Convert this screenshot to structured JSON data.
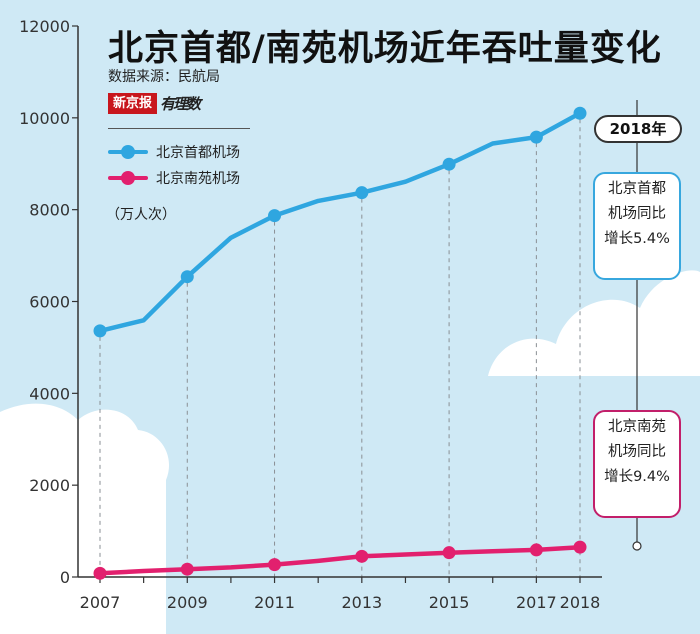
{
  "title": "北京首都/南苑机场近年吞吐量变化",
  "source": "数据来源：民航局",
  "logo": {
    "red_text": "新京报",
    "script_text": "有理数"
  },
  "unit": "（万人次）",
  "annotation": {
    "year": "2018年",
    "capital_lines": [
      "北京首都",
      "机场同比",
      "增长5.4%"
    ],
    "nanyuan_lines": [
      "北京南苑",
      "机场同比",
      "增长9.4%"
    ]
  },
  "colors": {
    "capital": "#2fa6e0",
    "nanyuan": "#e2206e",
    "background": "#cfe9f5"
  },
  "chart_data": {
    "type": "line",
    "x": [
      2007,
      2008,
      2009,
      2010,
      2011,
      2012,
      2013,
      2014,
      2015,
      2016,
      2017,
      2018
    ],
    "x_tick_labels": [
      "2007",
      "2009",
      "2011",
      "2013",
      "2015",
      "2017",
      "2018"
    ],
    "y_ticks": [
      0,
      2000,
      4000,
      6000,
      8000,
      10000,
      12000
    ],
    "ylim": [
      0,
      12000
    ],
    "grid": false,
    "legend_placement": "top-left",
    "series": [
      {
        "name": "北京首都机场",
        "values": [
          5360,
          5590,
          6540,
          7390,
          7870,
          8190,
          8370,
          8610,
          8990,
          9440,
          9580,
          10100
        ],
        "markers_at": [
          2007,
          2009,
          2011,
          2013,
          2015,
          2017,
          2018
        ]
      },
      {
        "name": "北京南苑机场",
        "values": [
          80,
          130,
          170,
          210,
          270,
          350,
          450,
          490,
          530,
          560,
          590,
          650
        ],
        "markers_at": [
          2007,
          2009,
          2011,
          2013,
          2015,
          2017,
          2018
        ]
      }
    ]
  }
}
